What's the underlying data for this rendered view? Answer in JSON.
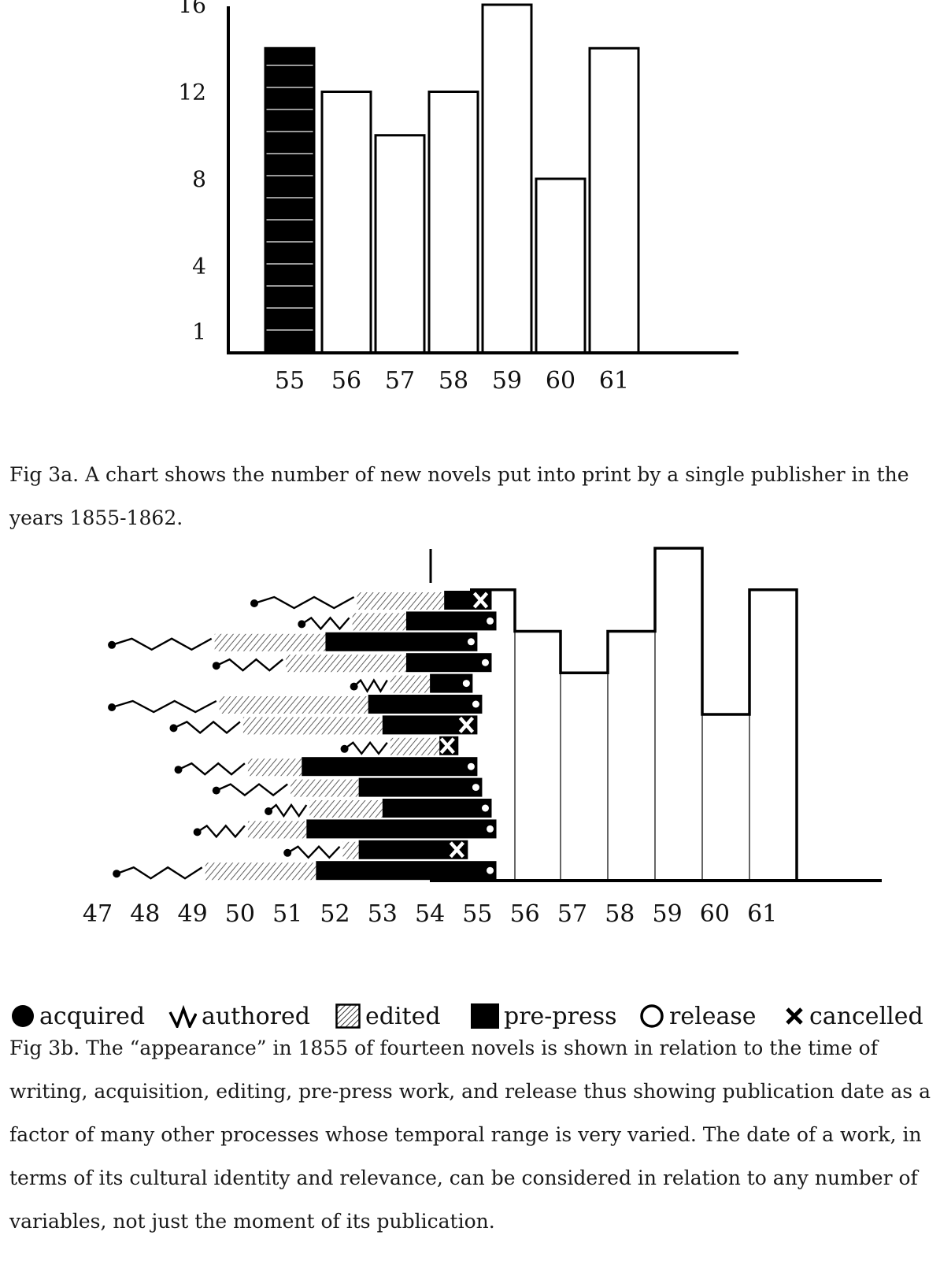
{
  "chart_data": [
    {
      "type": "bar",
      "categories": [
        "55",
        "56",
        "57",
        "58",
        "59",
        "60",
        "61"
      ],
      "values": [
        14,
        12,
        10,
        12,
        16,
        8,
        14
      ],
      "yticks": [
        "1",
        "4",
        "8",
        "12",
        "16"
      ],
      "ylim": [
        0,
        16
      ],
      "highlight_category": "55",
      "colors": {
        "highlight": "#000000",
        "bar_fill": "#ffffff",
        "stroke": "#000000"
      }
    },
    {
      "type": "bar",
      "x_categories": [
        "47",
        "48",
        "49",
        "50",
        "51",
        "52",
        "53",
        "54",
        "55",
        "56",
        "57",
        "58",
        "59",
        "60",
        "61"
      ],
      "step_bars": {
        "categories": [
          "55",
          "56",
          "57",
          "58",
          "59",
          "60",
          "61"
        ],
        "values": [
          14,
          12,
          10,
          12,
          16,
          8,
          14
        ]
      },
      "novels": [
        {
          "authored": [
            50.3,
            52.4
          ],
          "edited": [
            null,
            null
          ],
          "prepress": [
            54.3,
            55.3
          ],
          "end": "cancelled"
        },
        {
          "authored": [
            51.3,
            52.3
          ],
          "edited": [
            null,
            null
          ],
          "prepress": [
            53.5,
            55.4
          ],
          "end": "release"
        },
        {
          "authored": [
            47.3,
            49.4
          ],
          "edited": [
            null,
            null
          ],
          "prepress": [
            51.8,
            55.0
          ],
          "end": "release"
        },
        {
          "authored": [
            49.5,
            50.9
          ],
          "edited": [
            null,
            null
          ],
          "prepress": [
            53.5,
            55.3
          ],
          "end": "release"
        },
        {
          "authored": [
            52.4,
            53.1
          ],
          "edited": [
            null,
            null
          ],
          "prepress": [
            54.0,
            54.9
          ],
          "end": "release"
        },
        {
          "authored": [
            47.3,
            49.5
          ],
          "edited": [
            null,
            null
          ],
          "prepress": [
            52.7,
            55.1
          ],
          "end": "release"
        },
        {
          "authored": [
            48.6,
            50.0
          ],
          "edited": [
            null,
            null
          ],
          "prepress": [
            53.0,
            55.0
          ],
          "end": "cancelled"
        },
        {
          "authored": [
            52.2,
            53.1
          ],
          "edited": [
            null,
            null
          ],
          "prepress": [
            54.2,
            54.6
          ],
          "end": "cancelled"
        },
        {
          "authored": [
            48.7,
            50.1
          ],
          "edited": [
            null,
            null
          ],
          "prepress": [
            51.3,
            55.0
          ],
          "end": "release"
        },
        {
          "authored": [
            49.5,
            51.0
          ],
          "edited": [
            null,
            null
          ],
          "prepress": [
            52.5,
            55.1
          ],
          "end": "release"
        },
        {
          "authored": [
            50.6,
            51.4
          ],
          "edited": [
            null,
            null
          ],
          "prepress": [
            53.0,
            55.3
          ],
          "end": "release"
        },
        {
          "authored": [
            49.1,
            50.1
          ],
          "edited": [
            null,
            null
          ],
          "prepress": [
            51.4,
            55.4
          ],
          "end": "release"
        },
        {
          "authored": [
            51.0,
            52.1
          ],
          "edited": [
            null,
            null
          ],
          "prepress": [
            52.5,
            54.8
          ],
          "end": "cancelled"
        },
        {
          "authored": [
            47.4,
            49.2
          ],
          "edited": [
            null,
            null
          ],
          "prepress": [
            51.6,
            55.4
          ],
          "end": "release"
        }
      ],
      "legend_placement": "bottom",
      "colors": {
        "ink": "#000000",
        "hatch": "#444444"
      }
    }
  ],
  "legend": {
    "acquired": "acquired",
    "authored": "authored",
    "edited": "edited",
    "prepress": "pre-press",
    "release": "release",
    "cancelled": "cancelled"
  },
  "captions": {
    "fig3a": "Fig 3a. A chart shows the number of new novels put into print by a single publisher in the years 1855-1862.",
    "fig3b": "Fig 3b. The “appearance” in 1855 of fourteen novels is shown in relation to the time of writing, acquisition, editing, pre-press work, and release thus showing publication date as a factor of many other processes whose temporal range is very varied. The date of a work, in terms of its cultural identity and relevance, can be considered in relation to any number of variables, not just the moment of its publication."
  }
}
